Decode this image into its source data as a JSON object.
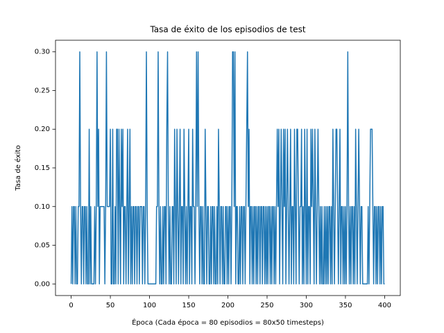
{
  "chart_data": {
    "type": "line",
    "title": "Tasa de éxito de los episodios de test",
    "x_label": "Época (Cada época = 80 episodios = 80x50 timesteps)",
    "y_label": "Tasa de éxito",
    "xlim": [
      -20,
      420
    ],
    "ylim": [
      -0.015,
      0.315
    ],
    "xticks": [
      0,
      50,
      100,
      150,
      200,
      250,
      300,
      350,
      400
    ],
    "yticks": [
      {
        "value": 0,
        "label": "0.00"
      },
      {
        "value": 0.05,
        "label": "0.05"
      },
      {
        "value": 0.1,
        "label": "0.10"
      },
      {
        "value": 0.15,
        "label": "0.15"
      },
      {
        "value": 0.2,
        "label": "0.20"
      },
      {
        "value": 0.25,
        "label": "0.25"
      },
      {
        "value": 0.3,
        "label": "0.30"
      }
    ],
    "grid": false,
    "x": [
      0,
      1,
      2,
      3,
      4,
      5,
      6,
      7,
      8,
      9,
      10,
      11,
      12,
      13,
      14,
      15,
      16,
      17,
      18,
      19,
      20,
      21,
      22,
      23,
      24,
      25,
      26,
      27,
      28,
      29,
      30,
      31,
      32,
      33,
      34,
      35,
      36,
      37,
      38,
      39,
      40,
      41,
      42,
      43,
      44,
      45,
      46,
      47,
      48,
      49,
      50,
      51,
      52,
      53,
      54,
      55,
      56,
      57,
      58,
      59,
      60,
      61,
      62,
      63,
      64,
      65,
      66,
      67,
      68,
      69,
      70,
      71,
      72,
      73,
      74,
      75,
      76,
      77,
      78,
      79,
      80,
      81,
      82,
      83,
      84,
      85,
      86,
      87,
      88,
      89,
      90,
      91,
      92,
      93,
      94,
      95,
      96,
      97,
      98,
      99,
      100,
      101,
      102,
      103,
      104,
      105,
      106,
      107,
      108,
      109,
      110,
      111,
      112,
      113,
      114,
      115,
      116,
      117,
      118,
      119,
      120,
      121,
      122,
      123,
      124,
      125,
      126,
      127,
      128,
      129,
      130,
      131,
      132,
      133,
      134,
      135,
      136,
      137,
      138,
      139,
      140,
      141,
      142,
      143,
      144,
      145,
      146,
      147,
      148,
      149,
      150,
      151,
      152,
      153,
      154,
      155,
      156,
      157,
      158,
      159,
      160,
      161,
      162,
      163,
      164,
      165,
      166,
      167,
      168,
      169,
      170,
      171,
      172,
      173,
      174,
      175,
      176,
      177,
      178,
      179,
      180,
      181,
      182,
      183,
      184,
      185,
      186,
      187,
      188,
      189,
      190,
      191,
      192,
      193,
      194,
      195,
      196,
      197,
      198,
      199,
      200,
      201,
      202,
      203,
      204,
      205,
      206,
      207,
      208,
      209,
      210,
      211,
      212,
      213,
      214,
      215,
      216,
      217,
      218,
      219,
      220,
      221,
      222,
      223,
      224,
      225,
      226,
      227,
      228,
      229,
      230,
      231,
      232,
      233,
      234,
      235,
      236,
      237,
      238,
      239,
      240,
      241,
      242,
      243,
      244,
      245,
      246,
      247,
      248,
      249,
      250,
      251,
      252,
      253,
      254,
      255,
      256,
      257,
      258,
      259,
      260,
      261,
      262,
      263,
      264,
      265,
      266,
      267,
      268,
      269,
      270,
      271,
      272,
      273,
      274,
      275,
      276,
      277,
      278,
      279,
      280,
      281,
      282,
      283,
      284,
      285,
      286,
      287,
      288,
      289,
      290,
      291,
      292,
      293,
      294,
      295,
      296,
      297,
      298,
      299,
      300,
      301,
      302,
      303,
      304,
      305,
      306,
      307,
      308,
      309,
      310,
      311,
      312,
      313,
      314,
      315,
      316,
      317,
      318,
      319,
      320,
      321,
      322,
      323,
      324,
      325,
      326,
      327,
      328,
      329,
      330,
      331,
      332,
      333,
      334,
      335,
      336,
      337,
      338,
      339,
      340,
      341,
      342,
      343,
      344,
      345,
      346,
      347,
      348,
      349,
      350,
      351,
      352,
      353,
      354,
      355,
      356,
      357,
      358,
      359,
      360,
      361,
      362,
      363,
      364,
      365,
      366,
      367,
      368,
      369,
      370,
      371,
      372,
      373,
      374,
      375,
      376,
      377,
      378,
      379,
      380,
      381,
      382,
      383,
      384,
      385,
      386,
      387,
      388,
      389,
      390,
      391,
      392,
      393,
      394,
      395,
      396,
      397,
      398,
      399,
      400
    ],
    "series": [
      {
        "color": "#1f77b4",
        "values": [
          0,
          0.1,
          0,
          0.1,
          0.1,
          0,
          0.1,
          0,
          0,
          0.1,
          0.1,
          0.3,
          0.1,
          0,
          0.1,
          0.1,
          0,
          0.1,
          0.1,
          0,
          0.1,
          0,
          0,
          0.2,
          0,
          0.1,
          0,
          0,
          0,
          0,
          0.1,
          0,
          0.1,
          0.3,
          0.1,
          0.2,
          0,
          0.1,
          0.1,
          0.1,
          0.1,
          0.1,
          0.1,
          0,
          0.1,
          0.3,
          0.1,
          0.1,
          0.1,
          0.1,
          0.2,
          0,
          0,
          0.2,
          0,
          0,
          0.1,
          0,
          0.2,
          0.2,
          0,
          0.2,
          0.1,
          0,
          0.2,
          0.1,
          0.2,
          0,
          0.1,
          0.1,
          0,
          0.1,
          0.2,
          0,
          0.1,
          0.2,
          0,
          0.1,
          0,
          0.1,
          0.1,
          0,
          0.1,
          0.1,
          0,
          0.1,
          0.1,
          0,
          0.1,
          0.1,
          0.1,
          0,
          0.1,
          0.1,
          0,
          0.1,
          0.3,
          0.1,
          0,
          0,
          0,
          0,
          0,
          0,
          0,
          0,
          0,
          0,
          0,
          0.1,
          0.1,
          0.3,
          0.1,
          0,
          0.1,
          0,
          0,
          0.1,
          0,
          0.1,
          0.1,
          0,
          0.2,
          0.3,
          0.1,
          0,
          0.1,
          0,
          0,
          0.1,
          0.1,
          0,
          0.2,
          0.1,
          0,
          0.2,
          0.1,
          0,
          0.1,
          0.2,
          0,
          0.1,
          0.1,
          0,
          0.2,
          0.1,
          0,
          0.1,
          0,
          0.1,
          0.2,
          0,
          0.1,
          0.1,
          0,
          0.2,
          0.1,
          0.1,
          0,
          0.1,
          0.3,
          0.1,
          0.3,
          0.1,
          0,
          0.1,
          0.1,
          0,
          0.1,
          0,
          0,
          0.2,
          0.1,
          0,
          0.1,
          0.1,
          0,
          0,
          0.1,
          0,
          0.1,
          0.1,
          0,
          0.1,
          0,
          0,
          0.1,
          0,
          0.2,
          0.1,
          0,
          0.1,
          0.1,
          0,
          0.1,
          0,
          0,
          0.1,
          0.1,
          0,
          0.1,
          0,
          0.1,
          0.1,
          0,
          0.1,
          0.3,
          0.3,
          0.1,
          0.3,
          0,
          0.1,
          0.1,
          0,
          0,
          0.1,
          0,
          0.1,
          0.1,
          0,
          0.1,
          0.1,
          0,
          0.1,
          0.2,
          0.3,
          0.1,
          0.2,
          0,
          0.1,
          0.1,
          0,
          0.1,
          0,
          0.1,
          0.1,
          0,
          0.1,
          0,
          0.1,
          0.1,
          0,
          0.1,
          0.1,
          0,
          0.1,
          0.1,
          0,
          0.1,
          0,
          0.1,
          0,
          0.1,
          0.1,
          0,
          0.1,
          0,
          0.1,
          0.1,
          0,
          0.1,
          0,
          0.1,
          0.2,
          0.1,
          0.2,
          0,
          0.1,
          0.2,
          0.1,
          0,
          0.2,
          0.1,
          0.2,
          0,
          0.1,
          0.2,
          0.1,
          0,
          0.1,
          0.2,
          0,
          0.1,
          0.1,
          0,
          0.2,
          0.1,
          0,
          0.2,
          0.2,
          0.1,
          0,
          0.1,
          0.1,
          0.2,
          0,
          0.1,
          0,
          0.2,
          0.1,
          0,
          0.2,
          0,
          0.1,
          0.1,
          0,
          0.2,
          0.1,
          0.2,
          0.1,
          0,
          0.2,
          0.1,
          0,
          0.1,
          0.2,
          0.1,
          0,
          0.1,
          0,
          0.1,
          0,
          0,
          0.1,
          0,
          0.1,
          0,
          0.1,
          0,
          0.1,
          0.1,
          0,
          0.1,
          0,
          0.2,
          0.1,
          0,
          0.1,
          0.2,
          0.2,
          0.1,
          0,
          0.1,
          0.2,
          0,
          0.1,
          0.1,
          0,
          0.1,
          0,
          0.1,
          0,
          0.1,
          0.3,
          0.1,
          0,
          0.1,
          0,
          0.1,
          0.1,
          0,
          0.1,
          0,
          0.2,
          0.1,
          0,
          0.1,
          0.2,
          0.1,
          0,
          0.1,
          0.1,
          0,
          0,
          0,
          0,
          0,
          0,
          0,
          0.1,
          0,
          0.1,
          0.2,
          0.2,
          0.2,
          0.1,
          0,
          0.1,
          0.1,
          0,
          0.1,
          0,
          0.1,
          0.1,
          0,
          0.1,
          0,
          0.1,
          0.1,
          0,
          0
        ]
      }
    ]
  }
}
